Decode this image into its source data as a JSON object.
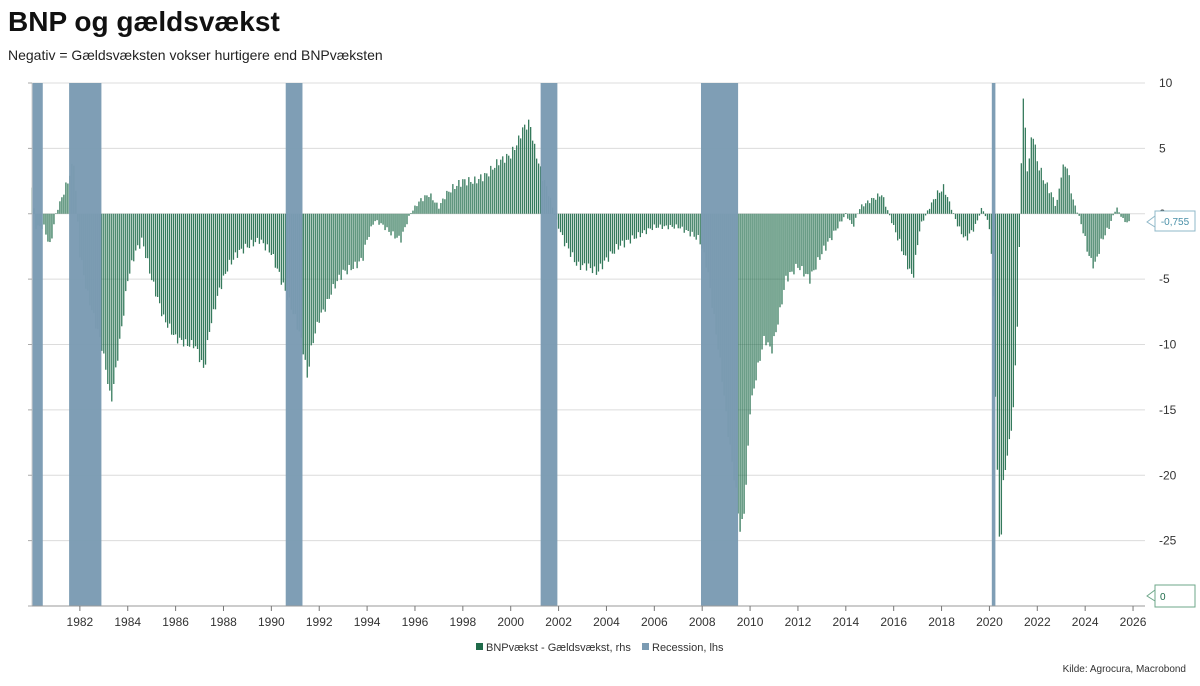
{
  "title": "BNP og gældsvækst",
  "subtitle": "Negativ = Gældsvæksten vokser hurtigere end BNPvæksten",
  "source": "Kilde: Agrocura, Macrobond",
  "chart_data": {
    "type": "bar",
    "title": "BNP og gældsvækst",
    "subtitle": "Negativ = Gældsvæksten vokser hurtigere end BNPvæksten",
    "x_range": [
      1980,
      2026.5
    ],
    "x_ticks": [
      1982,
      1984,
      1986,
      1988,
      1990,
      1992,
      1994,
      1996,
      1998,
      2000,
      2002,
      2004,
      2006,
      2008,
      2010,
      2012,
      2014,
      2016,
      2018,
      2020,
      2022,
      2024,
      2026
    ],
    "y_right": {
      "label": "rhs",
      "range": [
        -30,
        10
      ],
      "ticks": [
        10,
        5,
        0,
        -5,
        -10,
        -15,
        -20,
        -25
      ]
    },
    "y_left": {
      "label": "lhs",
      "range": [
        0,
        1
      ]
    },
    "grid": true,
    "legend_position": "bottom-center",
    "series": [
      {
        "name": "BNPvækst - Gældsvækst, rhs",
        "color": "#1f6b4a",
        "axis": "right",
        "anchors": [
          [
            1980.0,
            2.0
          ],
          [
            1980.15,
            -1.0
          ],
          [
            1980.5,
            -1.0
          ],
          [
            1980.75,
            -2.5
          ],
          [
            1981.0,
            0.0
          ],
          [
            1981.3,
            1.5
          ],
          [
            1981.5,
            2.5
          ],
          [
            1981.75,
            4.0
          ],
          [
            1982.0,
            -3.0
          ],
          [
            1982.3,
            -6.0
          ],
          [
            1982.6,
            -8.0
          ],
          [
            1982.9,
            -10.0
          ],
          [
            1983.1,
            -12.0
          ],
          [
            1983.3,
            -14.5
          ],
          [
            1983.5,
            -12.0
          ],
          [
            1983.8,
            -8.0
          ],
          [
            1984.0,
            -5.0
          ],
          [
            1984.3,
            -3.0
          ],
          [
            1984.6,
            -2.0
          ],
          [
            1985.0,
            -5.0
          ],
          [
            1985.5,
            -8.0
          ],
          [
            1986.0,
            -9.5
          ],
          [
            1986.5,
            -10.0
          ],
          [
            1986.8,
            -10.0
          ],
          [
            1987.0,
            -11.0
          ],
          [
            1987.2,
            -12.0
          ],
          [
            1987.4,
            -9.0
          ],
          [
            1987.8,
            -6.0
          ],
          [
            1988.2,
            -4.0
          ],
          [
            1988.6,
            -3.0
          ],
          [
            1989.0,
            -2.5
          ],
          [
            1989.5,
            -2.0
          ],
          [
            1990.0,
            -3.0
          ],
          [
            1990.3,
            -4.5
          ],
          [
            1990.6,
            -6.0
          ],
          [
            1991.0,
            -8.0
          ],
          [
            1991.3,
            -10.0
          ],
          [
            1991.5,
            -12.5
          ],
          [
            1991.7,
            -10.0
          ],
          [
            1992.0,
            -8.0
          ],
          [
            1992.3,
            -7.0
          ],
          [
            1992.5,
            -6.0
          ],
          [
            1992.8,
            -5.0
          ],
          [
            1993.0,
            -4.5
          ],
          [
            1993.5,
            -4.0
          ],
          [
            1993.8,
            -3.5
          ],
          [
            1994.0,
            -2.0
          ],
          [
            1994.3,
            -0.5
          ],
          [
            1994.6,
            -0.8
          ],
          [
            1995.0,
            -1.5
          ],
          [
            1995.4,
            -2.0
          ],
          [
            1995.8,
            0.0
          ],
          [
            1996.2,
            1.0
          ],
          [
            1996.6,
            1.5
          ],
          [
            1997.0,
            0.5
          ],
          [
            1997.3,
            1.5
          ],
          [
            1997.6,
            2.0
          ],
          [
            1998.0,
            2.5
          ],
          [
            1998.5,
            2.5
          ],
          [
            1999.0,
            3.0
          ],
          [
            1999.5,
            4.0
          ],
          [
            2000.0,
            4.5
          ],
          [
            2000.3,
            5.5
          ],
          [
            2000.5,
            6.5
          ],
          [
            2000.8,
            7.0
          ],
          [
            2001.0,
            5.0
          ],
          [
            2001.3,
            3.0
          ],
          [
            2001.6,
            1.5
          ],
          [
            2001.9,
            -0.5
          ],
          [
            2002.2,
            -2.0
          ],
          [
            2002.5,
            -3.0
          ],
          [
            2002.8,
            -4.0
          ],
          [
            2003.2,
            -4.0
          ],
          [
            2003.6,
            -4.5
          ],
          [
            2004.0,
            -3.5
          ],
          [
            2004.5,
            -2.5
          ],
          [
            2005.0,
            -2.0
          ],
          [
            2005.5,
            -1.5
          ],
          [
            2006.0,
            -1.0
          ],
          [
            2006.5,
            -1.0
          ],
          [
            2007.0,
            -1.0
          ],
          [
            2007.5,
            -1.5
          ],
          [
            2007.9,
            -2.0
          ],
          [
            2008.2,
            -4.0
          ],
          [
            2008.5,
            -8.0
          ],
          [
            2008.8,
            -12.0
          ],
          [
            2009.1,
            -17.0
          ],
          [
            2009.4,
            -21.0
          ],
          [
            2009.6,
            -24.5
          ],
          [
            2009.8,
            -22.0
          ],
          [
            2010.0,
            -15.0
          ],
          [
            2010.3,
            -12.0
          ],
          [
            2010.6,
            -9.5
          ],
          [
            2010.9,
            -10.5
          ],
          [
            2011.2,
            -8.0
          ],
          [
            2011.5,
            -5.0
          ],
          [
            2012.0,
            -4.0
          ],
          [
            2012.5,
            -5.0
          ],
          [
            2013.0,
            -3.0
          ],
          [
            2013.5,
            -1.5
          ],
          [
            2014.0,
            0.0
          ],
          [
            2014.3,
            -1.0
          ],
          [
            2014.6,
            0.5
          ],
          [
            2015.0,
            1.0
          ],
          [
            2015.5,
            1.5
          ],
          [
            2015.8,
            0.0
          ],
          [
            2016.2,
            -2.0
          ],
          [
            2016.5,
            -3.5
          ],
          [
            2016.8,
            -5.0
          ],
          [
            2017.1,
            -1.0
          ],
          [
            2017.5,
            0.5
          ],
          [
            2017.8,
            1.5
          ],
          [
            2018.1,
            2.0
          ],
          [
            2018.4,
            0.5
          ],
          [
            2018.7,
            -1.0
          ],
          [
            2019.0,
            -2.0
          ],
          [
            2019.4,
            -1.0
          ],
          [
            2019.7,
            0.5
          ],
          [
            2020.0,
            -1.0
          ],
          [
            2020.15,
            -5.0
          ],
          [
            2020.3,
            -18.0
          ],
          [
            2020.45,
            -26.5
          ],
          [
            2020.6,
            -20.0
          ],
          [
            2020.8,
            -18.0
          ],
          [
            2021.0,
            -15.0
          ],
          [
            2021.2,
            -7.0
          ],
          [
            2021.4,
            9.5
          ],
          [
            2021.6,
            3.0
          ],
          [
            2021.8,
            6.5
          ],
          [
            2022.0,
            4.0
          ],
          [
            2022.3,
            2.5
          ],
          [
            2022.6,
            1.5
          ],
          [
            2022.8,
            0.5
          ],
          [
            2023.0,
            3.0
          ],
          [
            2023.2,
            4.0
          ],
          [
            2023.5,
            1.0
          ],
          [
            2023.8,
            -0.5
          ],
          [
            2024.0,
            -2.0
          ],
          [
            2024.2,
            -3.5
          ],
          [
            2024.4,
            -4.0
          ],
          [
            2024.7,
            -2.0
          ],
          [
            2025.0,
            -1.0
          ],
          [
            2025.3,
            0.5
          ],
          [
            2025.6,
            -0.5
          ],
          [
            2025.9,
            -0.755
          ]
        ]
      },
      {
        "name": "Recession, lhs",
        "color": "#7b9bb3",
        "axis": "left",
        "periods": [
          [
            1980.0,
            1980.45
          ],
          [
            1981.55,
            1982.9
          ],
          [
            1990.6,
            1991.3
          ],
          [
            2001.25,
            2001.95
          ],
          [
            2007.95,
            2009.5
          ],
          [
            2020.1,
            2020.25
          ]
        ]
      }
    ],
    "last_values": {
      "rhs": "-0,755",
      "lhs": "0"
    }
  }
}
